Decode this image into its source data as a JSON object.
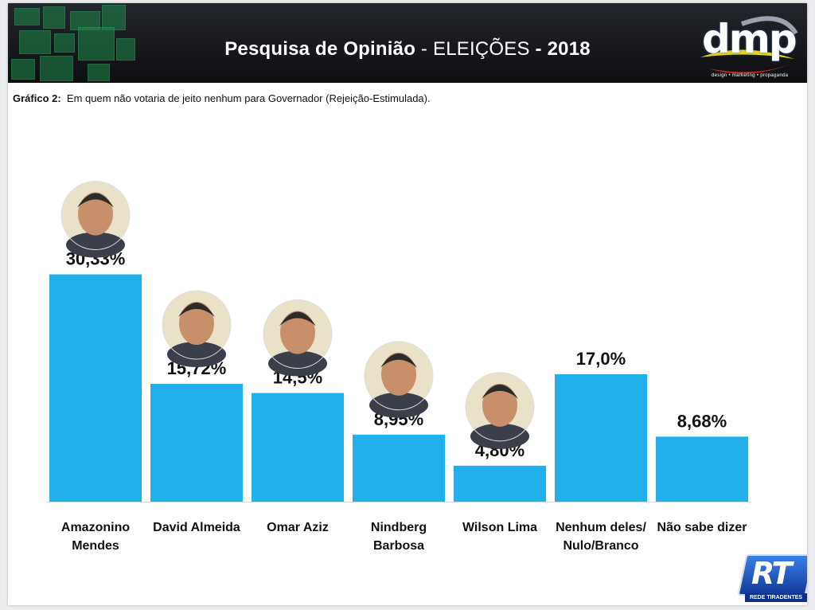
{
  "header": {
    "title_bold_1": "Pesquisa de Opinião",
    "title_sep_1": " - ",
    "title_regular": "ELEIÇÕES",
    "title_sep_2": " - ",
    "title_bold_2": "2018",
    "logo_text": "dmp",
    "logo_subtext": "design • marketing • propaganda"
  },
  "subtitle": {
    "label": "Gráfico 2:",
    "text": "Em quem não votaria de jeito nenhum para Governador (Rejeição-Estimulada)."
  },
  "watermark": {
    "text": "RT",
    "subtext": "REDE TIRADENTES"
  },
  "colors": {
    "bar": "#22b0ea",
    "header_bg": "#17191d",
    "accent_green": "#1e8a4a"
  },
  "chart_data": {
    "type": "bar",
    "categories": [
      [
        "Amazonino",
        "Mendes"
      ],
      [
        "David Almeida"
      ],
      [
        "Omar Aziz"
      ],
      [
        "Nindberg",
        "Barbosa"
      ],
      [
        "Wilson Lima"
      ],
      [
        "Nenhum deles/",
        "Nulo/Branco"
      ],
      [
        "Não sabe dizer"
      ]
    ],
    "values": [
      30.33,
      15.72,
      14.5,
      8.95,
      4.8,
      17.0,
      8.68
    ],
    "data_labels": [
      "30,33%",
      "15,72%",
      "14,5%",
      "8,95%",
      "4,80%",
      "17,0%",
      "8,68%"
    ],
    "unit": "%",
    "ylim": [
      0,
      34
    ],
    "grid": false,
    "legend": "none",
    "photo_categories": [
      0,
      1,
      2,
      3,
      4
    ]
  }
}
